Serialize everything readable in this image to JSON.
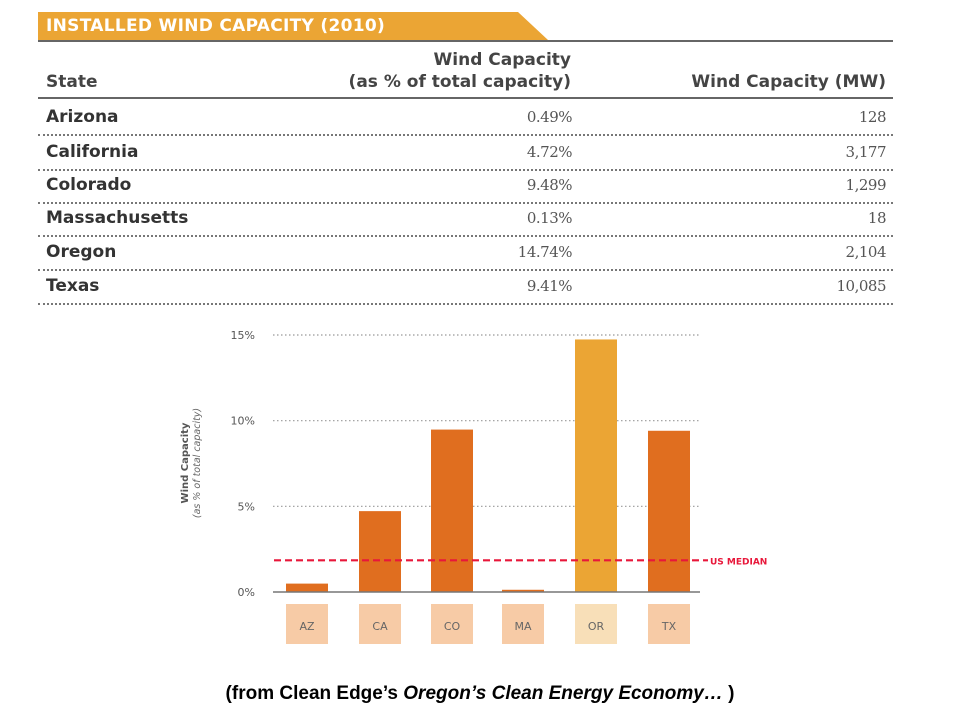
{
  "table": {
    "title": "INSTALLED WIND CAPACITY (2010)",
    "headers": {
      "state": "State",
      "pct_line1": "Wind Capacity",
      "pct_line2": "(as % of total capacity)",
      "mw": "Wind Capacity (MW)"
    },
    "rows": [
      {
        "state": "Arizona",
        "pct": "0.49%",
        "mw": "128"
      },
      {
        "state": "California",
        "pct": "4.72%",
        "mw": "3,177"
      },
      {
        "state": "Colorado",
        "pct": "9.48%",
        "mw": "1,299"
      },
      {
        "state": "Massachusetts",
        "pct": "0.13%",
        "mw": "18"
      },
      {
        "state": "Oregon",
        "pct": "14.74%",
        "mw": "2,104"
      },
      {
        "state": "Texas",
        "pct": "9.41%",
        "mw": "10,085"
      }
    ]
  },
  "chart_data": {
    "type": "bar",
    "categories": [
      "AZ",
      "CA",
      "CO",
      "MA",
      "OR",
      "TX"
    ],
    "values": [
      0.49,
      4.72,
      9.48,
      0.13,
      14.74,
      9.41
    ],
    "ylabel": "Wind Capacity",
    "ylabel_sub": "(as % of total capacity)",
    "ylim": [
      0,
      15
    ],
    "yticks": [
      {
        "v": 0,
        "label": "0%"
      },
      {
        "v": 5,
        "label": "5%"
      },
      {
        "v": 10,
        "label": "10%"
      },
      {
        "v": 15,
        "label": "15%"
      }
    ],
    "grid": true,
    "reference_line": {
      "label": "US MEDIAN",
      "value": 1.85,
      "color": "#e8173a"
    },
    "colors": {
      "default": "#e06e1f",
      "highlight": "#eba534",
      "highlight_category": "OR",
      "state_shape": "#f7cba6",
      "state_shape_highlight": "#f8dfb8"
    }
  },
  "caption": {
    "prefix": "(from Clean Edge’s ",
    "italic": "Oregon’s Clean Energy Economy…",
    "suffix": " )"
  }
}
